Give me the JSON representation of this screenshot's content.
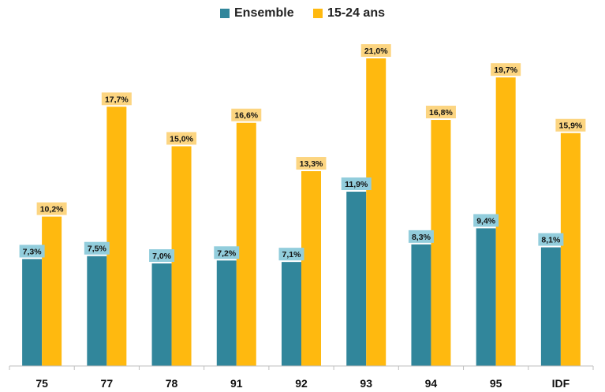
{
  "chart_data": {
    "type": "bar",
    "categories": [
      "75",
      "77",
      "78",
      "91",
      "92",
      "93",
      "94",
      "95",
      "IDF"
    ],
    "series": [
      {
        "name": "Ensemble",
        "values": [
          7.3,
          7.5,
          7.0,
          7.2,
          7.1,
          11.9,
          8.3,
          9.4,
          8.1
        ],
        "labels": [
          "7,3%",
          "7,5%",
          "7,0%",
          "7,2%",
          "7,1%",
          "11,9%",
          "8,3%",
          "9,4%",
          "8,1%"
        ],
        "color": "#31869b",
        "label_bg": "#92cddc"
      },
      {
        "name": "15-24 ans",
        "values": [
          10.2,
          17.7,
          15.0,
          16.6,
          13.3,
          21.0,
          16.8,
          19.7,
          15.9
        ],
        "labels": [
          "10,2%",
          "17,7%",
          "15,0%",
          "16,6%",
          "13,3%",
          "21,0%",
          "16,8%",
          "19,7%",
          "15,9%"
        ],
        "color": "#ffb90f",
        "label_bg": "#fcd581"
      }
    ],
    "ylim": [
      0,
      22
    ],
    "grid": false,
    "legend_position": "top-center"
  }
}
